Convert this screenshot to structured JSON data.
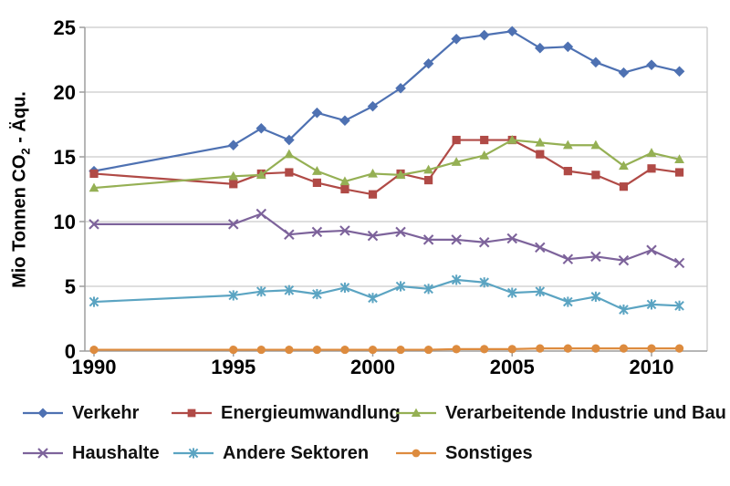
{
  "figure": {
    "background": "#ffffff"
  },
  "y_axis": {
    "title_prefix": "Mio Tonnen CO",
    "title_sub": "2",
    "title_suffix": " - Äqu.",
    "ticks": [
      0,
      5,
      10,
      15,
      20,
      25
    ]
  },
  "x_axis": {
    "tick_years": [
      1990,
      1995,
      2000,
      2005,
      2010
    ]
  },
  "colors": {
    "grid": "#c9c9c9",
    "axis": "#9e9e9e",
    "plot_border": "#c9c9c9",
    "text": "#000000"
  },
  "chart_data": {
    "type": "line",
    "title": "",
    "xlabel": "",
    "ylabel": "Mio Tonnen CO2 - Äqu.",
    "ylim": [
      0,
      25
    ],
    "xlim": [
      1990,
      2011
    ],
    "grid": true,
    "legend_position": "bottom",
    "x": [
      1990,
      1995,
      1996,
      1997,
      1998,
      1999,
      2000,
      2001,
      2002,
      2003,
      2004,
      2005,
      2006,
      2007,
      2008,
      2009,
      2010,
      2011
    ],
    "series": [
      {
        "name": "Verkehr",
        "marker": "diamond",
        "color": "#4e71b2",
        "values": [
          13.9,
          15.9,
          17.2,
          16.3,
          18.4,
          17.8,
          18.9,
          20.3,
          22.2,
          24.1,
          24.4,
          24.7,
          23.4,
          23.5,
          22.3,
          21.5,
          22.1,
          21.6
        ]
      },
      {
        "name": "Energieumwandlung",
        "marker": "square",
        "color": "#b04a46",
        "values": [
          13.7,
          12.9,
          13.7,
          13.8,
          13.0,
          12.5,
          12.1,
          13.7,
          13.2,
          16.3,
          16.3,
          16.3,
          15.2,
          13.9,
          13.6,
          12.7,
          14.1,
          13.8
        ]
      },
      {
        "name": "Verarbeitende Industrie und Bau",
        "marker": "triangle",
        "color": "#95b054",
        "values": [
          12.6,
          13.5,
          13.6,
          15.2,
          13.9,
          13.1,
          13.7,
          13.6,
          14.0,
          14.6,
          15.1,
          16.3,
          16.1,
          15.9,
          15.9,
          14.3,
          15.3,
          14.8
        ]
      },
      {
        "name": "Haushalte",
        "marker": "x",
        "color": "#7d639b",
        "values": [
          9.8,
          9.8,
          10.6,
          9.0,
          9.2,
          9.3,
          8.9,
          9.2,
          8.6,
          8.6,
          8.4,
          8.7,
          8.0,
          7.1,
          7.3,
          7.0,
          7.8,
          6.8
        ]
      },
      {
        "name": "Andere Sektoren",
        "marker": "asterisk",
        "color": "#5ba4c2",
        "values": [
          3.8,
          4.3,
          4.6,
          4.7,
          4.4,
          4.9,
          4.1,
          5.0,
          4.8,
          5.5,
          5.3,
          4.5,
          4.6,
          3.8,
          4.2,
          3.2,
          3.6,
          3.5
        ]
      },
      {
        "name": "Sonstiges",
        "marker": "circle",
        "color": "#dd8b3e",
        "values": [
          0.1,
          0.1,
          0.1,
          0.1,
          0.1,
          0.1,
          0.1,
          0.1,
          0.1,
          0.15,
          0.15,
          0.15,
          0.2,
          0.2,
          0.2,
          0.2,
          0.2,
          0.2
        ]
      }
    ]
  },
  "legend": {
    "rows": [
      [
        "Verkehr",
        "Energieumwandlung",
        "Verarbeitende Industrie und Bau"
      ],
      [
        "Haushalte",
        "Andere Sektoren",
        "Sonstiges"
      ]
    ]
  }
}
